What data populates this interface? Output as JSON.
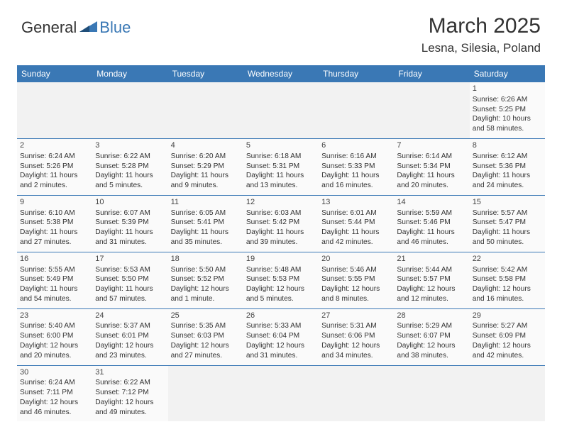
{
  "logo": {
    "part1": "General",
    "part2": "Blue"
  },
  "title": "March 2025",
  "location": "Lesna, Silesia, Poland",
  "colors": {
    "header_bg": "#3a78b5",
    "header_text": "#ffffff",
    "cell_bg": "#fafafa",
    "blank_bg": "#f2f2f2",
    "divider": "#3a78b5",
    "text": "#333333"
  },
  "day_headers": [
    "Sunday",
    "Monday",
    "Tuesday",
    "Wednesday",
    "Thursday",
    "Friday",
    "Saturday"
  ],
  "weeks": [
    [
      null,
      null,
      null,
      null,
      null,
      null,
      {
        "n": "1",
        "sr": "Sunrise: 6:26 AM",
        "ss": "Sunset: 5:25 PM",
        "dl": "Daylight: 10 hours and 58 minutes."
      }
    ],
    [
      {
        "n": "2",
        "sr": "Sunrise: 6:24 AM",
        "ss": "Sunset: 5:26 PM",
        "dl": "Daylight: 11 hours and 2 minutes."
      },
      {
        "n": "3",
        "sr": "Sunrise: 6:22 AM",
        "ss": "Sunset: 5:28 PM",
        "dl": "Daylight: 11 hours and 5 minutes."
      },
      {
        "n": "4",
        "sr": "Sunrise: 6:20 AM",
        "ss": "Sunset: 5:29 PM",
        "dl": "Daylight: 11 hours and 9 minutes."
      },
      {
        "n": "5",
        "sr": "Sunrise: 6:18 AM",
        "ss": "Sunset: 5:31 PM",
        "dl": "Daylight: 11 hours and 13 minutes."
      },
      {
        "n": "6",
        "sr": "Sunrise: 6:16 AM",
        "ss": "Sunset: 5:33 PM",
        "dl": "Daylight: 11 hours and 16 minutes."
      },
      {
        "n": "7",
        "sr": "Sunrise: 6:14 AM",
        "ss": "Sunset: 5:34 PM",
        "dl": "Daylight: 11 hours and 20 minutes."
      },
      {
        "n": "8",
        "sr": "Sunrise: 6:12 AM",
        "ss": "Sunset: 5:36 PM",
        "dl": "Daylight: 11 hours and 24 minutes."
      }
    ],
    [
      {
        "n": "9",
        "sr": "Sunrise: 6:10 AM",
        "ss": "Sunset: 5:38 PM",
        "dl": "Daylight: 11 hours and 27 minutes."
      },
      {
        "n": "10",
        "sr": "Sunrise: 6:07 AM",
        "ss": "Sunset: 5:39 PM",
        "dl": "Daylight: 11 hours and 31 minutes."
      },
      {
        "n": "11",
        "sr": "Sunrise: 6:05 AM",
        "ss": "Sunset: 5:41 PM",
        "dl": "Daylight: 11 hours and 35 minutes."
      },
      {
        "n": "12",
        "sr": "Sunrise: 6:03 AM",
        "ss": "Sunset: 5:42 PM",
        "dl": "Daylight: 11 hours and 39 minutes."
      },
      {
        "n": "13",
        "sr": "Sunrise: 6:01 AM",
        "ss": "Sunset: 5:44 PM",
        "dl": "Daylight: 11 hours and 42 minutes."
      },
      {
        "n": "14",
        "sr": "Sunrise: 5:59 AM",
        "ss": "Sunset: 5:46 PM",
        "dl": "Daylight: 11 hours and 46 minutes."
      },
      {
        "n": "15",
        "sr": "Sunrise: 5:57 AM",
        "ss": "Sunset: 5:47 PM",
        "dl": "Daylight: 11 hours and 50 minutes."
      }
    ],
    [
      {
        "n": "16",
        "sr": "Sunrise: 5:55 AM",
        "ss": "Sunset: 5:49 PM",
        "dl": "Daylight: 11 hours and 54 minutes."
      },
      {
        "n": "17",
        "sr": "Sunrise: 5:53 AM",
        "ss": "Sunset: 5:50 PM",
        "dl": "Daylight: 11 hours and 57 minutes."
      },
      {
        "n": "18",
        "sr": "Sunrise: 5:50 AM",
        "ss": "Sunset: 5:52 PM",
        "dl": "Daylight: 12 hours and 1 minute."
      },
      {
        "n": "19",
        "sr": "Sunrise: 5:48 AM",
        "ss": "Sunset: 5:53 PM",
        "dl": "Daylight: 12 hours and 5 minutes."
      },
      {
        "n": "20",
        "sr": "Sunrise: 5:46 AM",
        "ss": "Sunset: 5:55 PM",
        "dl": "Daylight: 12 hours and 8 minutes."
      },
      {
        "n": "21",
        "sr": "Sunrise: 5:44 AM",
        "ss": "Sunset: 5:57 PM",
        "dl": "Daylight: 12 hours and 12 minutes."
      },
      {
        "n": "22",
        "sr": "Sunrise: 5:42 AM",
        "ss": "Sunset: 5:58 PM",
        "dl": "Daylight: 12 hours and 16 minutes."
      }
    ],
    [
      {
        "n": "23",
        "sr": "Sunrise: 5:40 AM",
        "ss": "Sunset: 6:00 PM",
        "dl": "Daylight: 12 hours and 20 minutes."
      },
      {
        "n": "24",
        "sr": "Sunrise: 5:37 AM",
        "ss": "Sunset: 6:01 PM",
        "dl": "Daylight: 12 hours and 23 minutes."
      },
      {
        "n": "25",
        "sr": "Sunrise: 5:35 AM",
        "ss": "Sunset: 6:03 PM",
        "dl": "Daylight: 12 hours and 27 minutes."
      },
      {
        "n": "26",
        "sr": "Sunrise: 5:33 AM",
        "ss": "Sunset: 6:04 PM",
        "dl": "Daylight: 12 hours and 31 minutes."
      },
      {
        "n": "27",
        "sr": "Sunrise: 5:31 AM",
        "ss": "Sunset: 6:06 PM",
        "dl": "Daylight: 12 hours and 34 minutes."
      },
      {
        "n": "28",
        "sr": "Sunrise: 5:29 AM",
        "ss": "Sunset: 6:07 PM",
        "dl": "Daylight: 12 hours and 38 minutes."
      },
      {
        "n": "29",
        "sr": "Sunrise: 5:27 AM",
        "ss": "Sunset: 6:09 PM",
        "dl": "Daylight: 12 hours and 42 minutes."
      }
    ],
    [
      {
        "n": "30",
        "sr": "Sunrise: 6:24 AM",
        "ss": "Sunset: 7:11 PM",
        "dl": "Daylight: 12 hours and 46 minutes."
      },
      {
        "n": "31",
        "sr": "Sunrise: 6:22 AM",
        "ss": "Sunset: 7:12 PM",
        "dl": "Daylight: 12 hours and 49 minutes."
      },
      null,
      null,
      null,
      null,
      null
    ]
  ]
}
